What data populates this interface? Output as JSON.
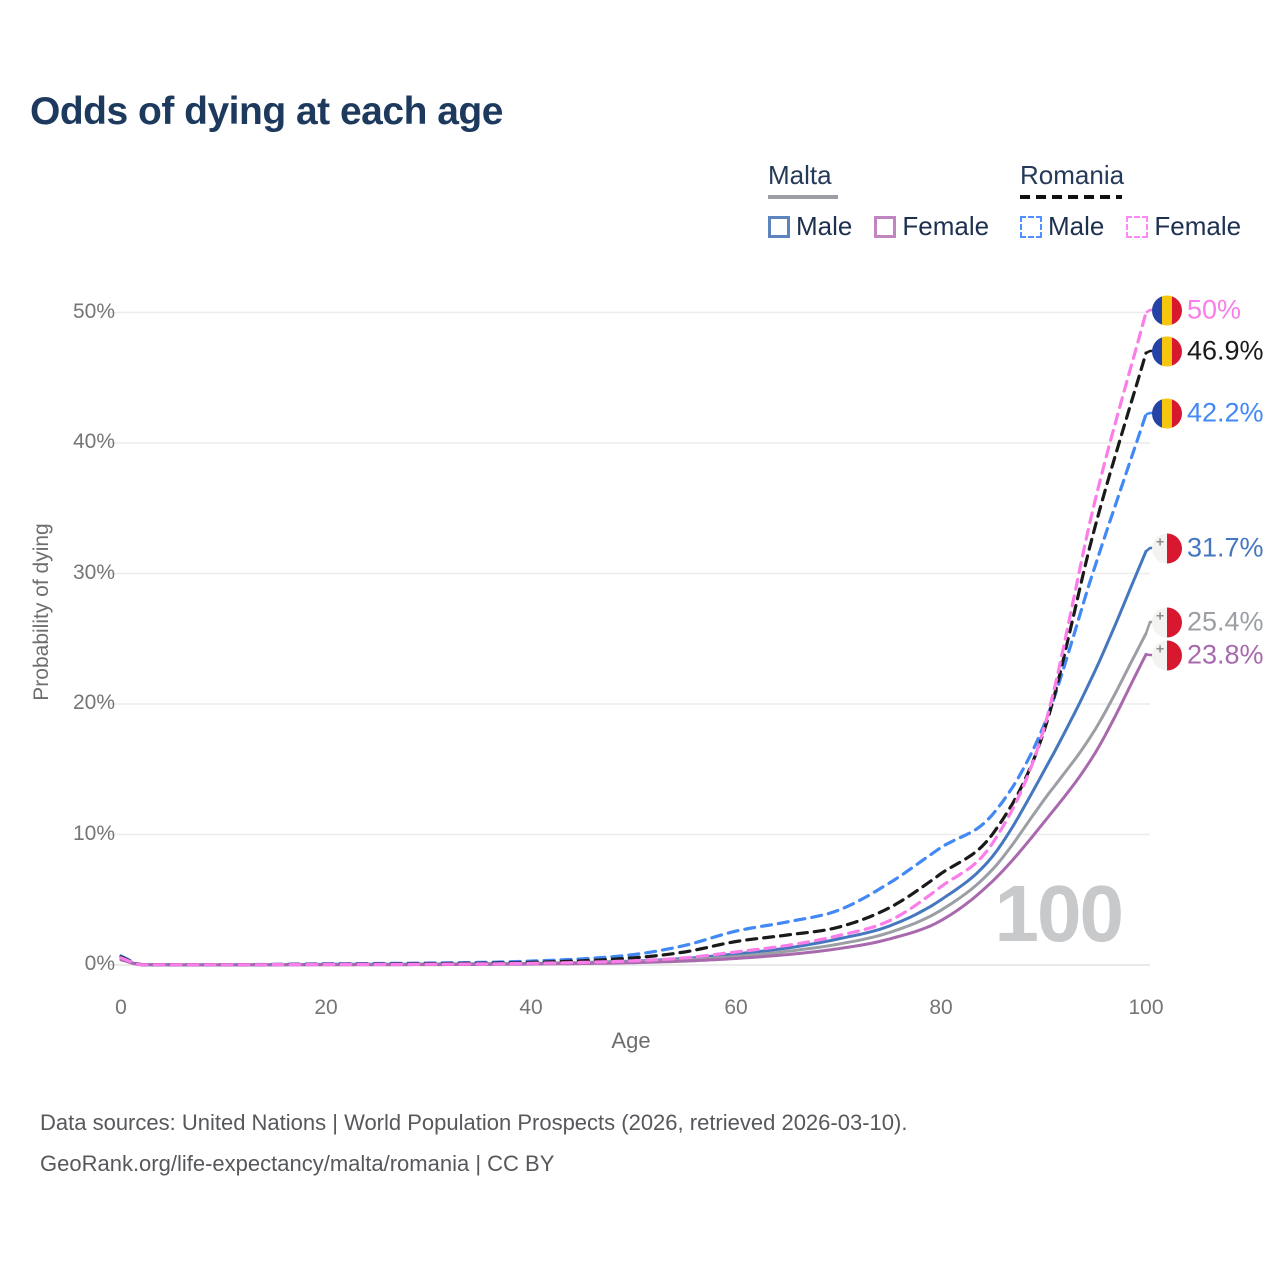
{
  "title": "Odds of dying at each age",
  "legend": {
    "groups": [
      {
        "label": "Malta",
        "line_style": "solid",
        "items": [
          {
            "label": "Male",
            "color": "#5c85bd"
          },
          {
            "label": "Female",
            "color": "#c185c0"
          }
        ]
      },
      {
        "label": "Romania",
        "line_style": "dashed",
        "items": [
          {
            "label": "Male",
            "color": "#4f92fb"
          },
          {
            "label": "Female",
            "color": "#fd87f3"
          }
        ]
      }
    ]
  },
  "axes": {
    "y": {
      "title": "Probability of dying",
      "ticks": [
        "0%",
        "10%",
        "20%",
        "30%",
        "40%",
        "50%"
      ]
    },
    "x": {
      "title": "Age",
      "ticks": [
        "0",
        "20",
        "40",
        "60",
        "80",
        "100"
      ]
    }
  },
  "watermark": "100",
  "footer": {
    "line1": "Data sources: United Nations | World Population Prospects (2026, retrieved 2026-03-10).",
    "line2": "GeoRank.org/life-expectancy/malta/romania | CC BY"
  },
  "chart_data": {
    "type": "line",
    "title": "Odds of dying at each age",
    "xlabel": "Age",
    "ylabel": "Probability of dying",
    "x_range": [
      0,
      100
    ],
    "y_range_percent": [
      0,
      50
    ],
    "grid": "horizontal",
    "legend_position": "top-right",
    "x": [
      0,
      2,
      10,
      20,
      30,
      40,
      50,
      55,
      60,
      65,
      70,
      75,
      80,
      85,
      90,
      95,
      100
    ],
    "series": [
      {
        "name": "Romania Female",
        "country": "Romania",
        "sex": "Female",
        "color": "#fa7de9",
        "dash": true,
        "flag": "romania",
        "end_label": "50%",
        "values": [
          0.55,
          0.02,
          0.02,
          0.04,
          0.06,
          0.13,
          0.32,
          0.55,
          1.0,
          1.5,
          2.25,
          3.4,
          6.0,
          9.3,
          18.0,
          35.5,
          50.0
        ]
      },
      {
        "name": "Romania Both sexes",
        "country": "Romania",
        "sex": "Both",
        "color": "#1a1a1a",
        "dash": true,
        "flag": "romania",
        "end_label": "46.9%",
        "values": [
          0.62,
          0.03,
          0.02,
          0.06,
          0.1,
          0.2,
          0.55,
          1.0,
          1.8,
          2.3,
          2.9,
          4.4,
          7.0,
          10.0,
          17.8,
          33.5,
          46.9
        ]
      },
      {
        "name": "Romania Male",
        "country": "Romania",
        "sex": "Male",
        "color": "#4289f5",
        "dash": true,
        "flag": "romania",
        "end_label": "42.2%",
        "values": [
          0.7,
          0.03,
          0.02,
          0.09,
          0.15,
          0.3,
          0.8,
          1.5,
          2.6,
          3.3,
          4.2,
          6.3,
          9.0,
          11.5,
          18.3,
          30.5,
          42.2
        ]
      },
      {
        "name": "Malta Male",
        "country": "Malta",
        "sex": "Male",
        "color": "#4577be",
        "dash": false,
        "flag": "malta",
        "end_label": "31.7%",
        "values": [
          0.5,
          0.02,
          0.01,
          0.05,
          0.07,
          0.12,
          0.3,
          0.5,
          0.85,
          1.3,
          2.0,
          3.0,
          5.0,
          8.3,
          14.8,
          22.5,
          31.7
        ]
      },
      {
        "name": "Malta Both sexes",
        "country": "Malta",
        "sex": "Both",
        "color": "#9b9fa4",
        "dash": false,
        "flag": "malta",
        "end_label": "25.4%",
        "values": [
          0.45,
          0.02,
          0.01,
          0.03,
          0.05,
          0.1,
          0.25,
          0.4,
          0.65,
          1.05,
          1.6,
          2.5,
          4.2,
          7.3,
          12.6,
          18.0,
          25.4
        ]
      },
      {
        "name": "Malta Female",
        "country": "Malta",
        "sex": "Female",
        "color": "#a869ad",
        "dash": false,
        "flag": "malta",
        "end_label": "23.8%",
        "values": [
          0.4,
          0.02,
          0.01,
          0.02,
          0.03,
          0.07,
          0.18,
          0.3,
          0.5,
          0.8,
          1.25,
          2.0,
          3.4,
          6.4,
          10.9,
          16.2,
          23.8
        ]
      }
    ]
  }
}
